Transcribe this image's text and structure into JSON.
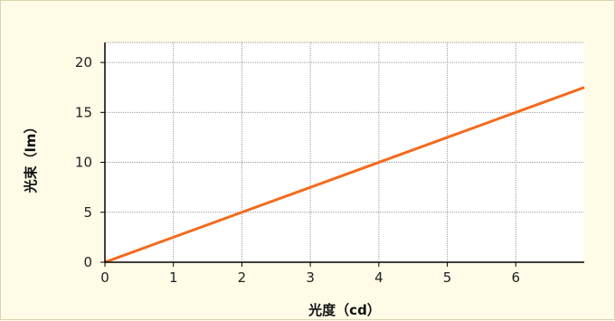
{
  "chart_data": {
    "type": "line",
    "xlabel": "光度（cd）",
    "ylabel": "光束（lm）",
    "xlim": [
      0,
      7
    ],
    "ylim": [
      0,
      22
    ],
    "x_ticks": [
      0,
      1,
      2,
      3,
      4,
      5,
      6
    ],
    "y_ticks": [
      0,
      5,
      10,
      15,
      20
    ],
    "grid": true,
    "series": [
      {
        "color": "#f26b1d",
        "x": [
          0,
          1,
          2,
          3,
          4,
          5,
          6,
          7
        ],
        "y": [
          0,
          2.5,
          5,
          7.5,
          10,
          12.5,
          15,
          17.5
        ]
      }
    ]
  }
}
